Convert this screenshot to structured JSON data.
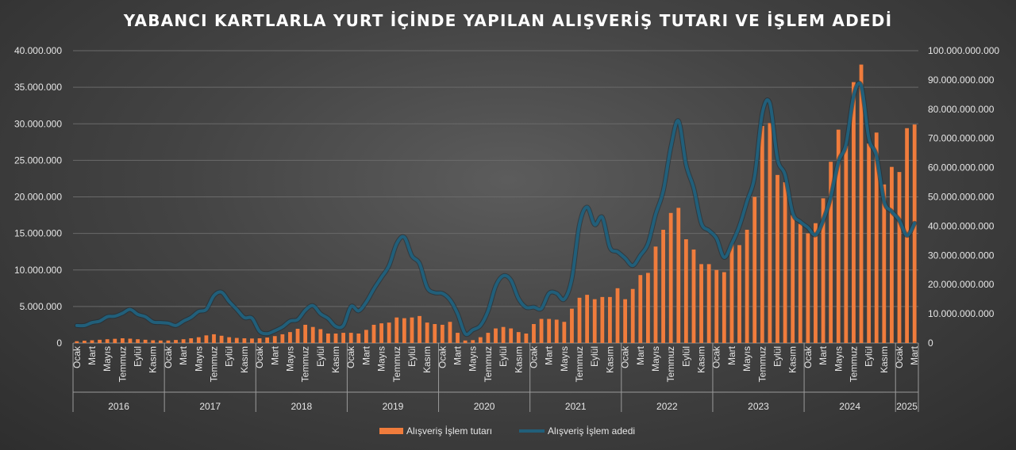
{
  "chart_data": {
    "type": "bar",
    "title": "YABANCI KARTLARLA YURT İÇİNDE YAPILAN ALIŞVERİŞ TUTARI VE İŞLEM ADEDİ",
    "left_axis": {
      "ylim": [
        0,
        40000000
      ],
      "tick_labels": [
        "0",
        "5.000.000",
        "10.000.000",
        "15.000.000",
        "20.000.000",
        "25.000.000",
        "30.000.000",
        "35.000.000",
        "40.000.000"
      ]
    },
    "right_axis": {
      "ylim": [
        0,
        100000000000
      ],
      "tick_labels": [
        "0",
        "10.000.000.000",
        "20.000.000.000",
        "30.000.000.000",
        "40.000.000.000",
        "50.000.000.000",
        "60.000.000.000",
        "70.000.000.000",
        "80.000.000.000",
        "90.000.000.000",
        "100.000.000.000"
      ]
    },
    "years": [
      {
        "label": "2016",
        "months": 12
      },
      {
        "label": "2017",
        "months": 12
      },
      {
        "label": "2018",
        "months": 12
      },
      {
        "label": "2019",
        "months": 12
      },
      {
        "label": "2020",
        "months": 12
      },
      {
        "label": "2021",
        "months": 12
      },
      {
        "label": "2022",
        "months": 12
      },
      {
        "label": "2023",
        "months": 12
      },
      {
        "label": "2024",
        "months": 12
      },
      {
        "label": "2025",
        "months": 3
      }
    ],
    "month_tick_labels": [
      "Ocak",
      "Mart",
      "Mayıs",
      "Temmuz",
      "Eylül",
      "Kasım"
    ],
    "month_tick_labels_last_year": [
      "Ocak",
      "Mart"
    ],
    "series": [
      {
        "name": "Alışveriş İşlem tutarı",
        "type": "bar",
        "axis": "left",
        "color": "#f07c3c",
        "values": [
          250000,
          320000,
          380000,
          450000,
          520000,
          580000,
          650000,
          600000,
          520000,
          450000,
          380000,
          350000,
          350000,
          420000,
          520000,
          650000,
          800000,
          1050000,
          1200000,
          1000000,
          800000,
          700000,
          650000,
          620000,
          650000,
          750000,
          950000,
          1200000,
          1500000,
          1950000,
          2500000,
          2200000,
          1900000,
          1300000,
          1300000,
          1400000,
          1400000,
          1300000,
          1800000,
          2500000,
          2700000,
          2800000,
          3500000,
          3400000,
          3500000,
          3700000,
          2800000,
          2600000,
          2500000,
          2900000,
          1400000,
          350000,
          400000,
          800000,
          1400000,
          2000000,
          2200000,
          2000000,
          1500000,
          1300000,
          2600000,
          3300000,
          3300000,
          3200000,
          2900000,
          4700000,
          6200000,
          6600000,
          6000000,
          6300000,
          6300000,
          7500000,
          6000000,
          7400000,
          9300000,
          9600000,
          13200000,
          15500000,
          17800000,
          18500000,
          14200000,
          12800000,
          10800000,
          10800000,
          10000000,
          9700000,
          13600000,
          13400000,
          15500000,
          20000000,
          29700000,
          30100000,
          23000000,
          22000000,
          17500000,
          16300000,
          15000000,
          16400000,
          19800000,
          24800000,
          29200000,
          27000000,
          35700000,
          38100000,
          27300000,
          28800000,
          21700000,
          24100000,
          23400000,
          29400000,
          29900000
        ]
      },
      {
        "name": "Alışveriş İşlem adedi",
        "type": "line",
        "axis": "right",
        "color": "#215f7a",
        "values": [
          6000000000,
          6000000000,
          7000000000,
          7500000000,
          9000000000,
          9200000000,
          10200000000,
          11500000000,
          9800000000,
          9000000000,
          7200000000,
          7000000000,
          6800000000,
          6000000000,
          7500000000,
          8800000000,
          10800000000,
          11500000000,
          16200000000,
          17400000000,
          14200000000,
          11500000000,
          8700000000,
          8500000000,
          4000000000,
          3200000000,
          4200000000,
          5500000000,
          7500000000,
          8000000000,
          11200000000,
          12800000000,
          10000000000,
          8400000000,
          5700000000,
          6000000000,
          12500000000,
          11000000000,
          14000000000,
          18500000000,
          22500000000,
          26500000000,
          34000000000,
          36200000000,
          29800000000,
          27200000000,
          19000000000,
          17200000000,
          17000000000,
          14800000000,
          10000000000,
          3200000000,
          4500000000,
          6000000000,
          11000000000,
          19500000000,
          23000000000,
          21500000000,
          15200000000,
          12200000000,
          12300000000,
          11800000000,
          17000000000,
          17000000000,
          15000000000,
          22000000000,
          40500000000,
          46500000000,
          40500000000,
          43000000000,
          32700000000,
          31200000000,
          29000000000,
          26500000000,
          30000000000,
          34000000000,
          44000000000,
          52000000000,
          67000000000,
          76000000000,
          61000000000,
          53000000000,
          41000000000,
          38500000000,
          35800000000,
          29300000000,
          34000000000,
          40000000000,
          48500000000,
          57000000000,
          78500000000,
          82000000000,
          63000000000,
          57500000000,
          44500000000,
          41500000000,
          39500000000,
          37000000000,
          42000000000,
          50000000000,
          62000000000,
          68000000000,
          84500000000,
          88000000000,
          70000000000,
          64000000000,
          48500000000,
          45000000000,
          42000000000,
          36800000000,
          41000000000
        ]
      }
    ],
    "legend": "bottom-center"
  }
}
